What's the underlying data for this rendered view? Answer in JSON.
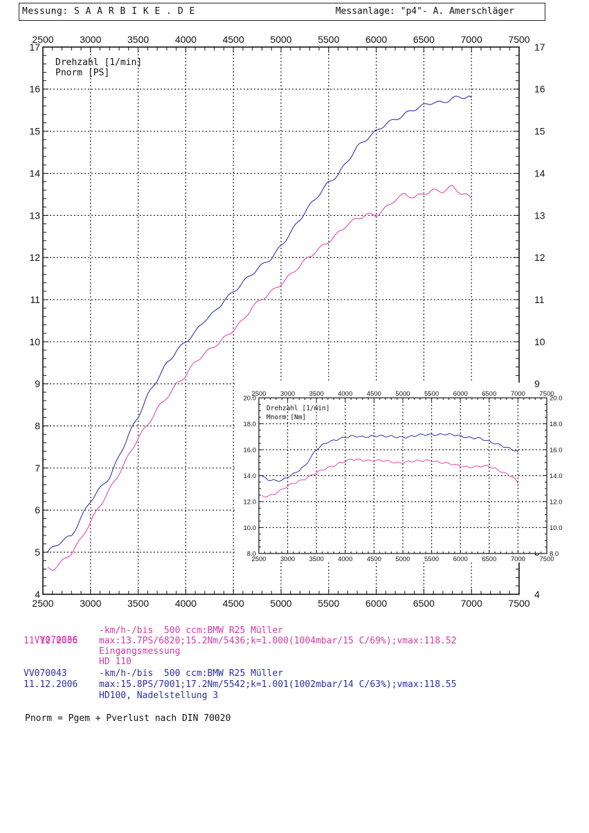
{
  "header": {
    "left": "Messung: S A A R B I K E . D E",
    "right": "Messanlage: \"p4\"- A. Amerschläger"
  },
  "colors": {
    "series1": "#e048b0",
    "series2": "#2e33a8",
    "grid": "#222222"
  },
  "chart_data": [
    {
      "type": "line",
      "title": "",
      "xlabel": "Drehzahl [1/min]",
      "ylabel": "Pnorm [PS]",
      "legend": [
        "Drehzahl [1/min]",
        "Pnorm [PS]"
      ],
      "xlim": [
        2500,
        7500
      ],
      "ylim": [
        4,
        17
      ],
      "x_ticks": [
        "2500",
        "3000",
        "3500",
        "4000",
        "4500",
        "5000",
        "5500",
        "6000",
        "6500",
        "7000",
        "7500"
      ],
      "y_ticks": [
        "4",
        "5",
        "6",
        "7",
        "8",
        "9",
        "10",
        "11",
        "12",
        "13",
        "14",
        "15",
        "16",
        "17"
      ],
      "series": [
        {
          "name": "VV070043",
          "x": [
            2550,
            2600,
            2700,
            2800,
            2900,
            3000,
            3100,
            3200,
            3300,
            3400,
            3500,
            3600,
            3700,
            3800,
            3900,
            4000,
            4100,
            4200,
            4300,
            4400,
            4500,
            4600,
            4700,
            4800,
            4900,
            5000,
            5100,
            5200,
            5300,
            5400,
            5500,
            5600,
            5700,
            5800,
            5900,
            6000,
            6100,
            6200,
            6300,
            6400,
            6500,
            6600,
            6700,
            6800,
            6900,
            7000
          ],
          "values": [
            5.0,
            5.1,
            5.3,
            5.4,
            5.8,
            6.2,
            6.5,
            6.8,
            7.3,
            7.8,
            8.2,
            8.7,
            9.1,
            9.5,
            9.8,
            10.0,
            10.2,
            10.5,
            10.7,
            11.0,
            11.2,
            11.4,
            11.6,
            11.8,
            12.0,
            12.3,
            12.6,
            12.9,
            13.2,
            13.5,
            13.8,
            14.0,
            14.3,
            14.6,
            14.8,
            15.0,
            15.2,
            15.3,
            15.4,
            15.5,
            15.6,
            15.7,
            15.7,
            15.8,
            15.8,
            15.8
          ]
        },
        {
          "name": "VV070036",
          "x": [
            2550,
            2600,
            2700,
            2800,
            2900,
            3000,
            3100,
            3200,
            3300,
            3400,
            3500,
            3600,
            3700,
            3800,
            3900,
            4000,
            4100,
            4200,
            4300,
            4400,
            4500,
            4600,
            4700,
            4800,
            4900,
            5000,
            5100,
            5200,
            5300,
            5400,
            5500,
            5600,
            5700,
            5800,
            5900,
            6000,
            6100,
            6200,
            6300,
            6400,
            6500,
            6600,
            6700,
            6800,
            6900,
            7000
          ],
          "values": [
            4.6,
            4.6,
            4.8,
            5.0,
            5.3,
            5.7,
            6.1,
            6.5,
            6.9,
            7.3,
            7.7,
            8.0,
            8.4,
            8.7,
            9.0,
            9.2,
            9.5,
            9.7,
            9.9,
            10.1,
            10.3,
            10.5,
            10.8,
            11.0,
            11.2,
            11.4,
            11.6,
            11.8,
            12.0,
            12.2,
            12.4,
            12.6,
            12.8,
            12.9,
            13.0,
            13.0,
            13.2,
            13.4,
            13.5,
            13.4,
            13.5,
            13.6,
            13.6,
            13.7,
            13.5,
            13.4
          ]
        }
      ]
    },
    {
      "type": "line",
      "title": "",
      "xlabel": "Drehzahl [1/min]",
      "ylabel": "Mnorm [Nm]",
      "legend": [
        "Drehzahl [1/min]",
        "Mnorm [Nm]"
      ],
      "xlim": [
        2500,
        7500
      ],
      "ylim": [
        8,
        20
      ],
      "x_ticks": [
        "2500",
        "3000",
        "3500",
        "4000",
        "4500",
        "5000",
        "5500",
        "6000",
        "6500",
        "7000",
        "7500"
      ],
      "y_ticks": [
        "8.0",
        "10.0",
        "12.0",
        "14.0",
        "16.0",
        "18.0",
        "20.0"
      ],
      "series": [
        {
          "name": "VV070043",
          "x": [
            2550,
            2700,
            2900,
            3100,
            3300,
            3500,
            3700,
            3900,
            4100,
            4300,
            4500,
            4700,
            4900,
            5100,
            5300,
            5500,
            5700,
            5900,
            6100,
            6300,
            6500,
            6700,
            6900,
            7000
          ],
          "values": [
            13.9,
            13.7,
            13.6,
            14.1,
            14.8,
            16.0,
            16.6,
            16.9,
            17.0,
            17.0,
            17.1,
            17.0,
            17.0,
            17.0,
            17.1,
            17.2,
            17.2,
            17.1,
            17.0,
            16.9,
            16.6,
            16.4,
            16.0,
            15.8
          ]
        },
        {
          "name": "VV070036",
          "x": [
            2550,
            2700,
            2900,
            3100,
            3300,
            3500,
            3700,
            3900,
            4100,
            4300,
            4500,
            4700,
            4900,
            5100,
            5300,
            5500,
            5700,
            5900,
            6100,
            6300,
            6500,
            6700,
            6900,
            7000
          ],
          "values": [
            12.4,
            12.5,
            12.9,
            13.4,
            13.8,
            14.2,
            14.6,
            15.0,
            15.2,
            15.2,
            15.2,
            15.1,
            15.0,
            15.1,
            15.1,
            15.2,
            15.0,
            14.8,
            14.7,
            14.7,
            14.7,
            14.4,
            13.9,
            13.4
          ]
        }
      ]
    }
  ],
  "records": [
    {
      "id": "VV070036",
      "date": "11.12.2006",
      "line1": "-km/h-/bis  500 ccm:BMW R25 Müller",
      "line2": "max:13.7PS/6820;15.2Nm/5436;k=1.000(1004mbar/15 C/69%);vmax:118.52",
      "line3": "Eingangsmessung",
      "line4": "HD 110"
    },
    {
      "id": "VV070043",
      "date": "11.12.2006",
      "line1": "-km/h-/bis  500 ccm:BMW R25 Müller",
      "line2": "max:15.8PS/7001;17.2Nm/5542;k=1.001(1002mbar/14 C/63%);vmax:118.55",
      "line3": "HD100, Nadelstellung 3",
      "line4": ""
    }
  ],
  "footer": "Pnorm = Pgem + Pverlust nach DIN 70020"
}
